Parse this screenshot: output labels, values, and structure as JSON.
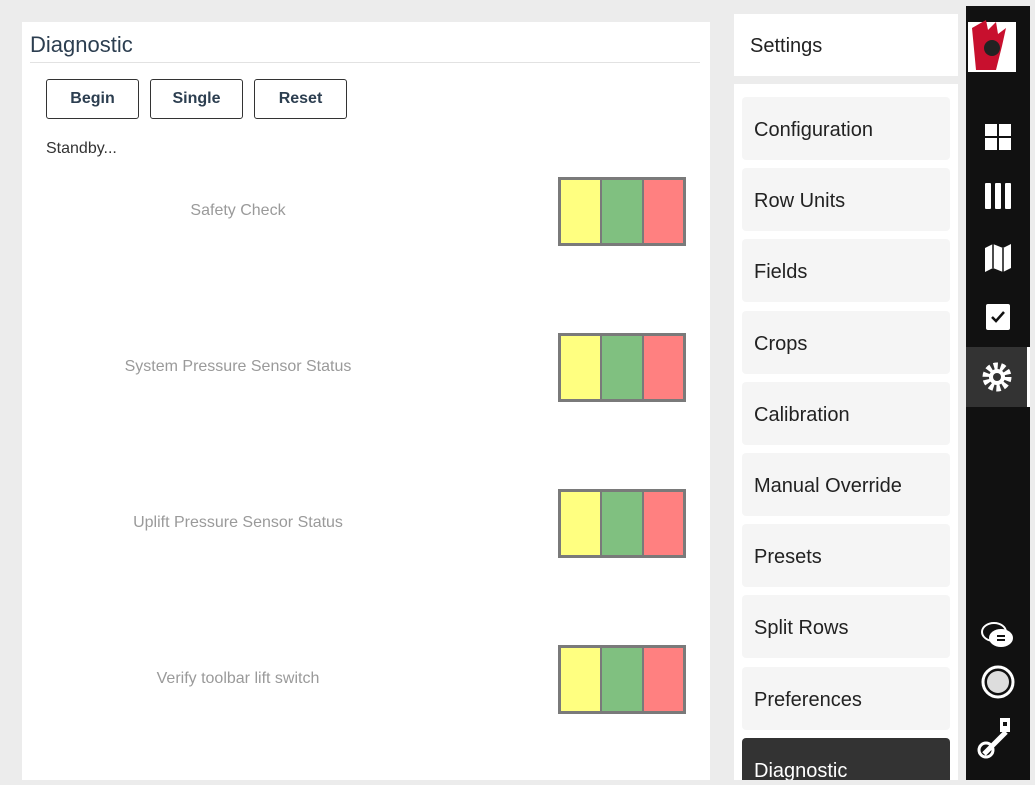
{
  "panel": {
    "title": "Diagnostic",
    "buttons": [
      "Begin",
      "Single",
      "Reset"
    ],
    "status": "Standby...",
    "checks": [
      "Safety Check",
      "System Pressure Sensor Status",
      "Uplift Pressure Sensor Status",
      "Verify toolbar lift switch"
    ]
  },
  "settings": {
    "title": "Settings",
    "items": [
      "Configuration",
      "Row Units",
      "Fields",
      "Crops",
      "Calibration",
      "Manual Override",
      "Presets",
      "Split Rows",
      "Preferences"
    ],
    "current": "Diagnostic"
  }
}
